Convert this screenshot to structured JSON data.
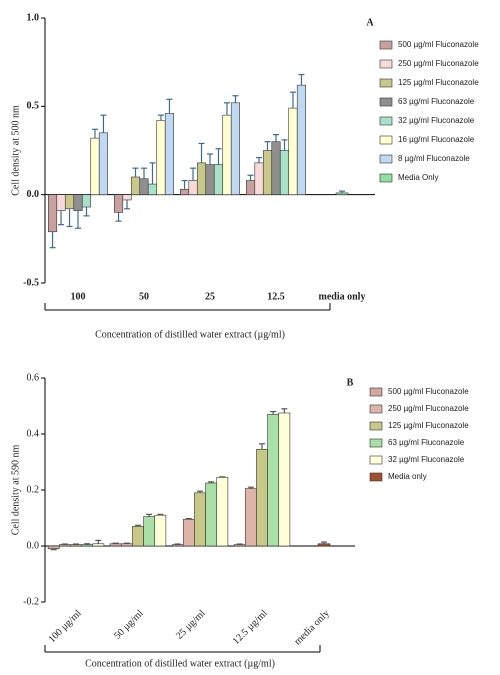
{
  "chart_data": [
    {
      "type": "bar",
      "panel_label": "A",
      "ylabel": "Cell density at 500 nm",
      "xlabel": "Concentration of distilled water extract (µg/ml)",
      "categories": [
        "100",
        "50",
        "25",
        "12.5",
        "media only"
      ],
      "ylim": [
        -0.5,
        1.0
      ],
      "yticks": [
        {
          "value": -0.5,
          "label": "-0.5"
        },
        {
          "value": 0,
          "label": "0.0"
        },
        {
          "value": 0.5,
          "label": "0.5"
        },
        {
          "value": 1.0,
          "label": "1.0"
        }
      ],
      "error_color": "#3a6d8c",
      "series": [
        {
          "name": "500 µg/ml Fluconazole",
          "color": "#c9a0a0",
          "values": [
            -0.21,
            -0.1,
            0.03,
            0.08,
            null
          ],
          "errors": [
            0.09,
            0.05,
            0.05,
            0.03,
            null
          ]
        },
        {
          "name": "250 µg/ml Fluconazole",
          "color": "#f7d9d9",
          "values": [
            -0.09,
            -0.03,
            0.08,
            0.18,
            null
          ],
          "errors": [
            0.08,
            0.05,
            0.07,
            0.03,
            null
          ]
        },
        {
          "name": "125 µg/ml Fluconazole",
          "color": "#c8c88a",
          "values": [
            -0.08,
            0.1,
            0.18,
            0.25,
            null
          ],
          "errors": [
            0.1,
            0.05,
            0.11,
            0.05,
            null
          ]
        },
        {
          "name": "63 µg/ml Fluconazole",
          "color": "#8f8f8f",
          "values": [
            -0.09,
            0.09,
            0.17,
            0.3,
            null
          ],
          "errors": [
            0.1,
            0.06,
            0.06,
            0.04,
            null
          ]
        },
        {
          "name": "32 µg/ml Fluconazole",
          "color": "#a8e0c8",
          "values": [
            -0.07,
            0.06,
            0.17,
            0.25,
            null
          ],
          "errors": [
            0.05,
            0.12,
            0.09,
            0.06,
            null
          ]
        },
        {
          "name": "16 µg/ml Fluconazole",
          "color": "#ffffd0",
          "values": [
            0.32,
            0.42,
            0.45,
            0.49,
            null
          ],
          "errors": [
            0.05,
            0.03,
            0.07,
            0.09,
            null
          ]
        },
        {
          "name": "8 µg/ml Fluconazole",
          "color": "#c0d8f2",
          "values": [
            0.35,
            0.46,
            0.52,
            0.62,
            null
          ],
          "errors": [
            0.1,
            0.08,
            0.04,
            0.06,
            null
          ]
        },
        {
          "name": "Media Only",
          "color": "#90e0a0",
          "values": [
            null,
            null,
            null,
            null,
            0.01
          ],
          "errors": [
            null,
            null,
            null,
            null,
            0.01
          ]
        }
      ]
    },
    {
      "type": "bar",
      "panel_label": "B",
      "ylabel": "Cell density at 590 nm",
      "xlabel": "Concentration of distilled water extract (µg/ml)",
      "categories": [
        "100 µg/ml",
        "50 µg/ml",
        "25 µg/ml",
        "12.5 µg/ml",
        "media only"
      ],
      "ylim": [
        -0.2,
        0.6
      ],
      "yticks": [
        {
          "value": -0.2,
          "label": "-0.2"
        },
        {
          "value": 0,
          "label": "0.0"
        },
        {
          "value": 0.2,
          "label": "0.2"
        },
        {
          "value": 0.4,
          "label": "0.4"
        },
        {
          "value": 0.6,
          "label": "0.6"
        }
      ],
      "error_color": "#555555",
      "series": [
        {
          "name": "500 µg/ml Fluconazole",
          "color": "#d4a8a0",
          "values": [
            -0.01,
            0.008,
            0.005,
            0.005,
            null
          ],
          "errors": [
            0.003,
            0.002,
            0.002,
            0.002,
            null
          ]
        },
        {
          "name": "250 µg/ml Fluconazole",
          "color": "#dcb4a8",
          "values": [
            0.005,
            0.008,
            0.095,
            0.205,
            null
          ],
          "errors": [
            0.002,
            0.002,
            0.003,
            0.005,
            null
          ]
        },
        {
          "name": "125 µg/ml Fluconazole",
          "color": "#c8c888",
          "values": [
            0.005,
            0.07,
            0.19,
            0.345,
            null
          ],
          "errors": [
            0.002,
            0.004,
            0.006,
            0.02,
            null
          ]
        },
        {
          "name": "63 µg/ml Fluconazole",
          "color": "#a8e0a8",
          "values": [
            0.005,
            0.105,
            0.225,
            0.47,
            null
          ],
          "errors": [
            0.003,
            0.008,
            0.004,
            0.01,
            null
          ]
        },
        {
          "name": "32 µg/ml Fluconazole",
          "color": "#ffffd8",
          "values": [
            0.008,
            0.11,
            0.245,
            0.475,
            null
          ],
          "errors": [
            0.012,
            0.003,
            0.002,
            0.015,
            null
          ]
        },
        {
          "name": "Media only",
          "color": "#a0522d",
          "values": [
            null,
            null,
            null,
            null,
            0.008
          ],
          "errors": [
            null,
            null,
            null,
            null,
            0.006
          ]
        }
      ]
    }
  ]
}
